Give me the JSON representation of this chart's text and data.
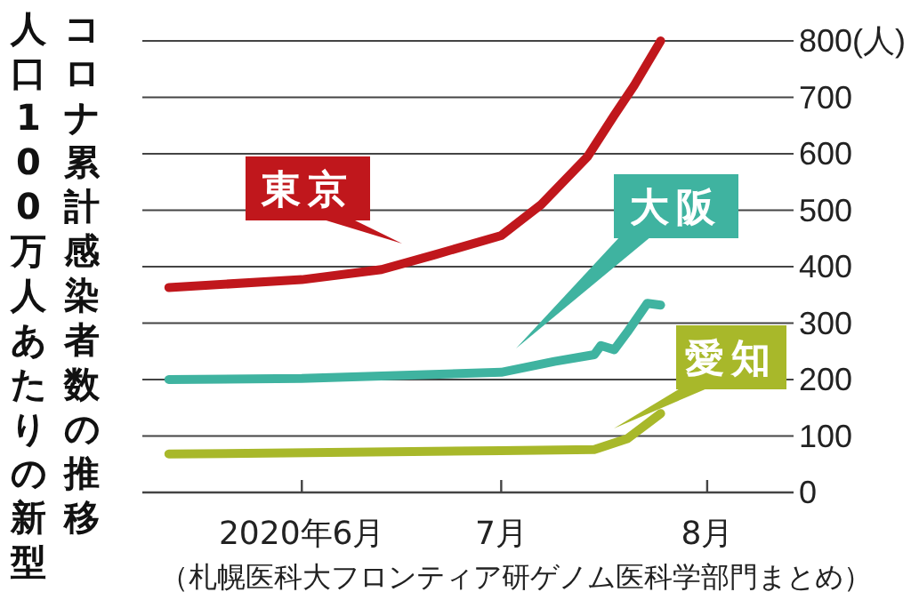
{
  "chart_data": {
    "type": "line",
    "title": "人口100万人あたりの新型コロナ累計感染者数の推移",
    "annotations": [
      "（札幌医科大フロンティア研ゲノム医科学部門まとめ）"
    ],
    "xlim": [
      "2020-05-08",
      "2020-08-14"
    ],
    "xticks": [
      {
        "value": "2020-06-01",
        "label": "2020年6月"
      },
      {
        "value": "2020-07-01",
        "label": "7月"
      },
      {
        "value": "2020-08-01",
        "label": "8月"
      }
    ],
    "ylim": [
      0,
      800
    ],
    "yticks": [
      0,
      100,
      200,
      300,
      400,
      500,
      600,
      700,
      {
        "value": 800,
        "label": "800(人)"
      }
    ],
    "grid": "y",
    "line_style": "solid",
    "marker": "none",
    "series": [
      {
        "name": "東京",
        "color": "#c0171c",
        "x": [
          "2020-05-12",
          "2020-06-01",
          "2020-06-13",
          "2020-06-21",
          "2020-07-01",
          "2020-07-07",
          "2020-07-14",
          "2020-07-18",
          "2020-07-21",
          "2020-07-25"
        ],
        "values": [
          363,
          377,
          395,
          421,
          455,
          510,
          595,
          668,
          721,
          800
        ]
      },
      {
        "name": "大阪",
        "color": "#3fb3a0",
        "x": [
          "2020-05-12",
          "2020-06-01",
          "2020-07-01",
          "2020-07-09",
          "2020-07-15",
          "2020-07-16",
          "2020-07-18",
          "2020-07-20",
          "2020-07-23",
          "2020-07-25"
        ],
        "values": [
          200,
          202,
          213,
          232,
          244,
          260,
          253,
          284,
          335,
          332
        ]
      },
      {
        "name": "愛知",
        "color": "#a8b82a",
        "x": [
          "2020-05-12",
          "2020-07-01",
          "2020-07-15",
          "2020-07-20",
          "2020-07-25"
        ],
        "values": [
          68,
          74,
          76,
          95,
          140
        ]
      }
    ]
  }
}
